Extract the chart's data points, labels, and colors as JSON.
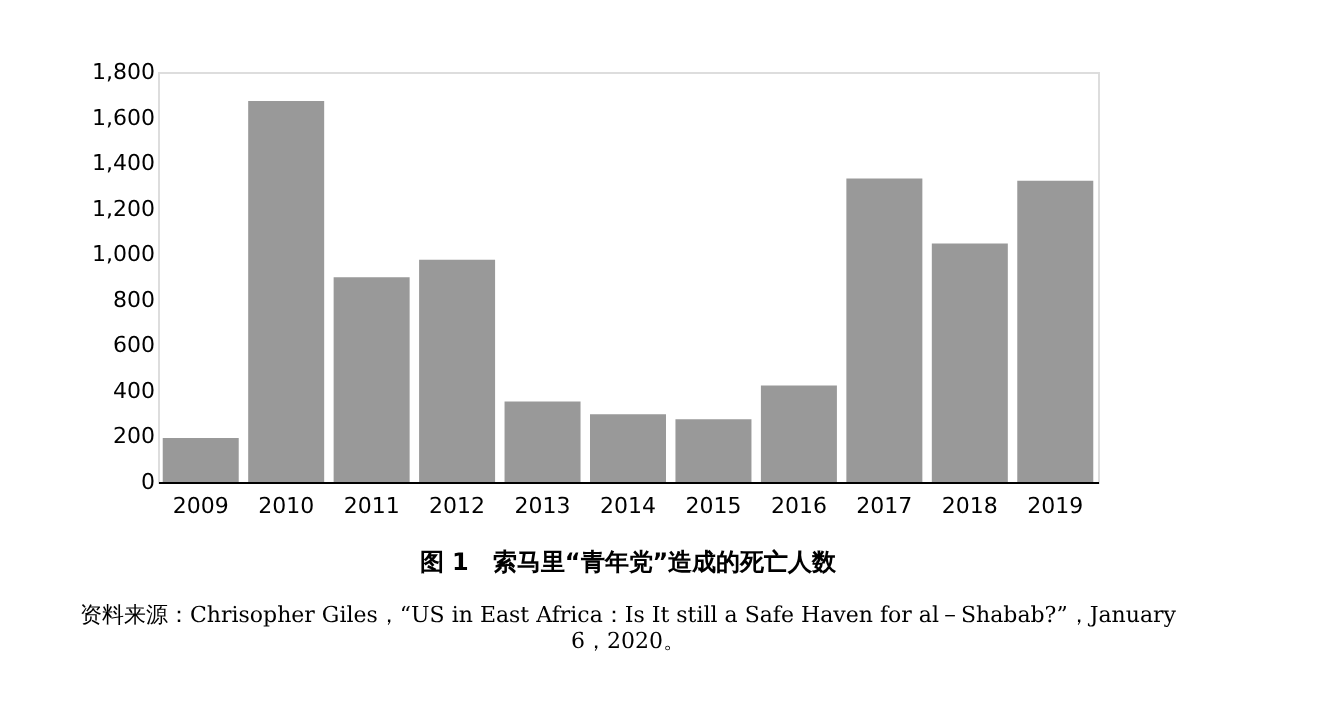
{
  "chart_data": {
    "type": "bar",
    "title": "图 1　索马里“青年党”造成的死亡人数",
    "categories": [
      "2009",
      "2010",
      "2011",
      "2012",
      "2013",
      "2014",
      "2015",
      "2016",
      "2017",
      "2018",
      "2019"
    ],
    "values": [
      193,
      1673,
      899,
      976,
      353,
      297,
      276,
      424,
      1332,
      1047,
      1323
    ],
    "color": "#999999",
    "ylim": [
      0,
      1800
    ],
    "yticks": [
      {
        "value": 0,
        "label": "0"
      },
      {
        "value": 200,
        "label": "200"
      },
      {
        "value": 400,
        "label": "400"
      },
      {
        "value": 600,
        "label": "600"
      },
      {
        "value": 800,
        "label": "800"
      },
      {
        "value": 1000,
        "label": "1,000"
      },
      {
        "value": 1200,
        "label": "1,200"
      },
      {
        "value": 1400,
        "label": "1,400"
      },
      {
        "value": 1600,
        "label": "1,600"
      },
      {
        "value": 1800,
        "label": "1,800"
      }
    ],
    "grid": false,
    "annotations": [
      "资料来源：Chrisopher Giles，“US in East Africa：Is It still a Safe Haven for al－Shabab?”，January 6，2020。"
    ]
  }
}
